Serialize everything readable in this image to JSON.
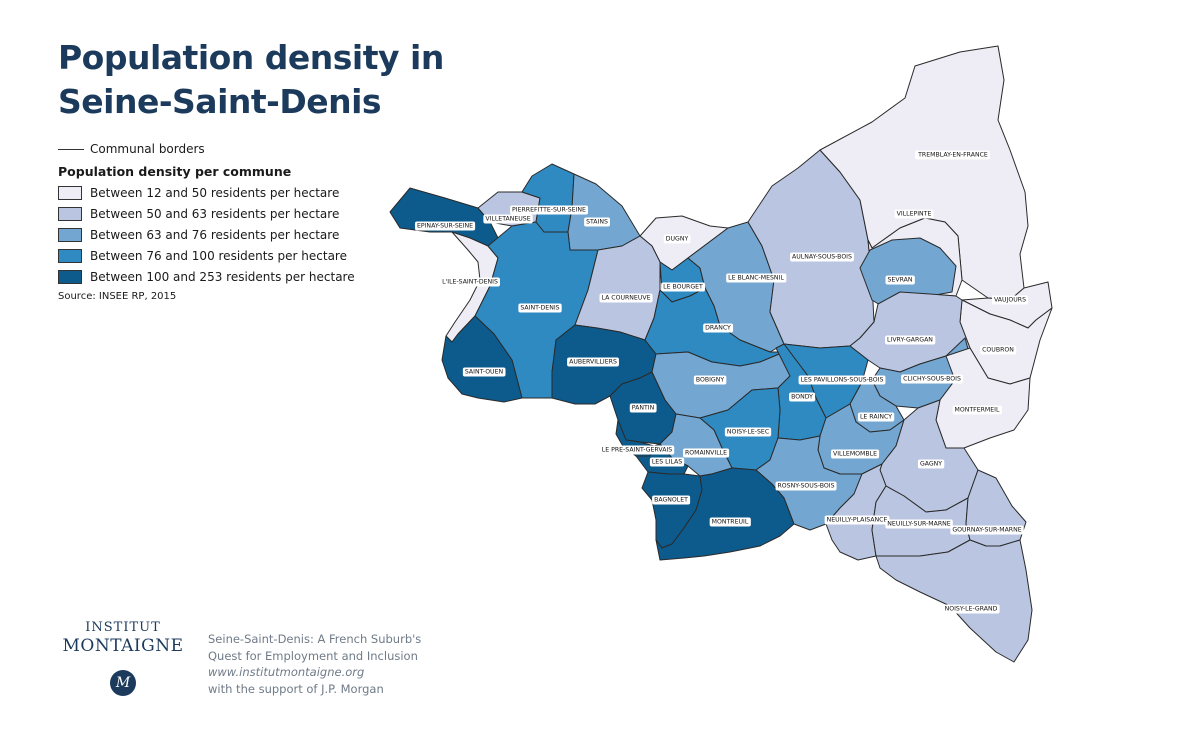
{
  "title": {
    "line1": "Population density in",
    "line2": "Seine-Saint-Denis"
  },
  "legend": {
    "border_label": "Communal borders",
    "heading": "Population density per commune",
    "classes": [
      {
        "label": "Between 12 and 50 residents per hectare",
        "color": "#eeedf5"
      },
      {
        "label": "Between 50 and 63 residents per hectare",
        "color": "#bac6e1"
      },
      {
        "label": "Between 63 and 76 residents per hectare",
        "color": "#73a7d1"
      },
      {
        "label": "Between 76 and 100 residents per hectare",
        "color": "#2f8ac2"
      },
      {
        "label": "Between 100 and 253 residents per hectare",
        "color": "#0d5b8d"
      }
    ],
    "source": "Source: INSEE RP, 2015"
  },
  "map": {
    "communes": [
      {
        "name": "EPINAY-SUR-SEINE",
        "class": 4
      },
      {
        "name": "VILLETANEUSE",
        "class": 1
      },
      {
        "name": "PIERREFITTE-SUR-SEINE",
        "class": 3
      },
      {
        "name": "STAINS",
        "class": 2
      },
      {
        "name": "DUGNY",
        "class": 0
      },
      {
        "name": "L'ILE-SAINT-DENIS",
        "class": 0
      },
      {
        "name": "SAINT-DENIS",
        "class": 3
      },
      {
        "name": "LA COURNEUVE",
        "class": 1
      },
      {
        "name": "LE BOURGET",
        "class": 3
      },
      {
        "name": "LE BLANC-MESNIL",
        "class": 2
      },
      {
        "name": "AULNAY-SOUS-BOIS",
        "class": 1
      },
      {
        "name": "TREMBLAY-EN-FRANCE",
        "class": 0
      },
      {
        "name": "VILLEPINTE",
        "class": 0
      },
      {
        "name": "SEVRAN",
        "class": 2
      },
      {
        "name": "VAUJOURS",
        "class": 0
      },
      {
        "name": "COUBRON",
        "class": 0
      },
      {
        "name": "SAINT-OUEN",
        "class": 4
      },
      {
        "name": "AUBERVILLIERS",
        "class": 4
      },
      {
        "name": "DRANCY",
        "class": 3
      },
      {
        "name": "BOBIGNY",
        "class": 2
      },
      {
        "name": "LIVRY-GARGAN",
        "class": 1
      },
      {
        "name": "LES PAVILLONS-SOUS-BOIS",
        "class": 3
      },
      {
        "name": "CLICHY-SOUS-BOIS",
        "class": 2
      },
      {
        "name": "BONDY",
        "class": 3
      },
      {
        "name": "PANTIN",
        "class": 4
      },
      {
        "name": "MONTFERMEIL",
        "class": 0
      },
      {
        "name": "LE RAINCY",
        "class": 2
      },
      {
        "name": "NOISY-LE-SEC",
        "class": 3
      },
      {
        "name": "LE PRE-SAINT-GERVAIS",
        "class": 4
      },
      {
        "name": "ROMAINVILLE",
        "class": 2
      },
      {
        "name": "LES LILAS",
        "class": 4
      },
      {
        "name": "VILLEMOMBLE",
        "class": 2
      },
      {
        "name": "GAGNY",
        "class": 1
      },
      {
        "name": "ROSNY-SOUS-BOIS",
        "class": 2
      },
      {
        "name": "BAGNOLET",
        "class": 4
      },
      {
        "name": "MONTREUIL",
        "class": 4
      },
      {
        "name": "NEUILLY-PLAISANCE",
        "class": 1
      },
      {
        "name": "NEUILLY-SUR-MARNE",
        "class": 1
      },
      {
        "name": "GOURNAY-SUR-MARNE",
        "class": 1
      },
      {
        "name": "NOISY-LE-GRAND",
        "class": 1
      }
    ]
  },
  "logo": {
    "line1": "INSTITUT",
    "line2": "MONTAIGNE",
    "mark": "M"
  },
  "credits": {
    "line1": "Seine-Saint-Denis: A French Suburb's",
    "line2": "Quest for Employment and Inclusion",
    "url": "www.institutmontaigne.org",
    "support": "with the support of J.P. Morgan"
  }
}
